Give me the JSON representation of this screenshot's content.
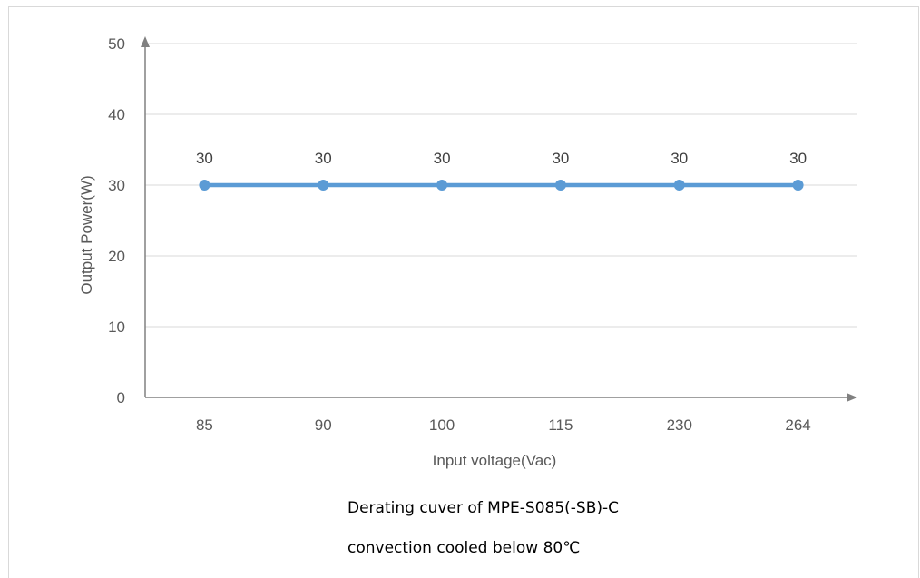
{
  "chart_data": {
    "type": "line",
    "categories": [
      "85",
      "90",
      "100",
      "115",
      "230",
      "264"
    ],
    "series": [
      {
        "values": [
          30,
          30,
          30,
          30,
          30,
          30
        ]
      }
    ],
    "data_labels": [
      "30",
      "30",
      "30",
      "30",
      "30",
      "30"
    ],
    "xlabel": "Input voltage(Vac)",
    "ylabel": "Output Power(W)",
    "ylim": [
      0,
      50
    ],
    "yticks": [
      "0",
      "10",
      "20",
      "30",
      "40",
      "50"
    ],
    "grid": true,
    "colors": {
      "series": "#5b9bd5",
      "axis": "#808080",
      "grid": "#d9d9d9",
      "text": "#595959"
    }
  },
  "caption": {
    "line1": "Derating cuver of MPE-S085(-SB)-C",
    "line2": "convection cooled below 80℃"
  }
}
